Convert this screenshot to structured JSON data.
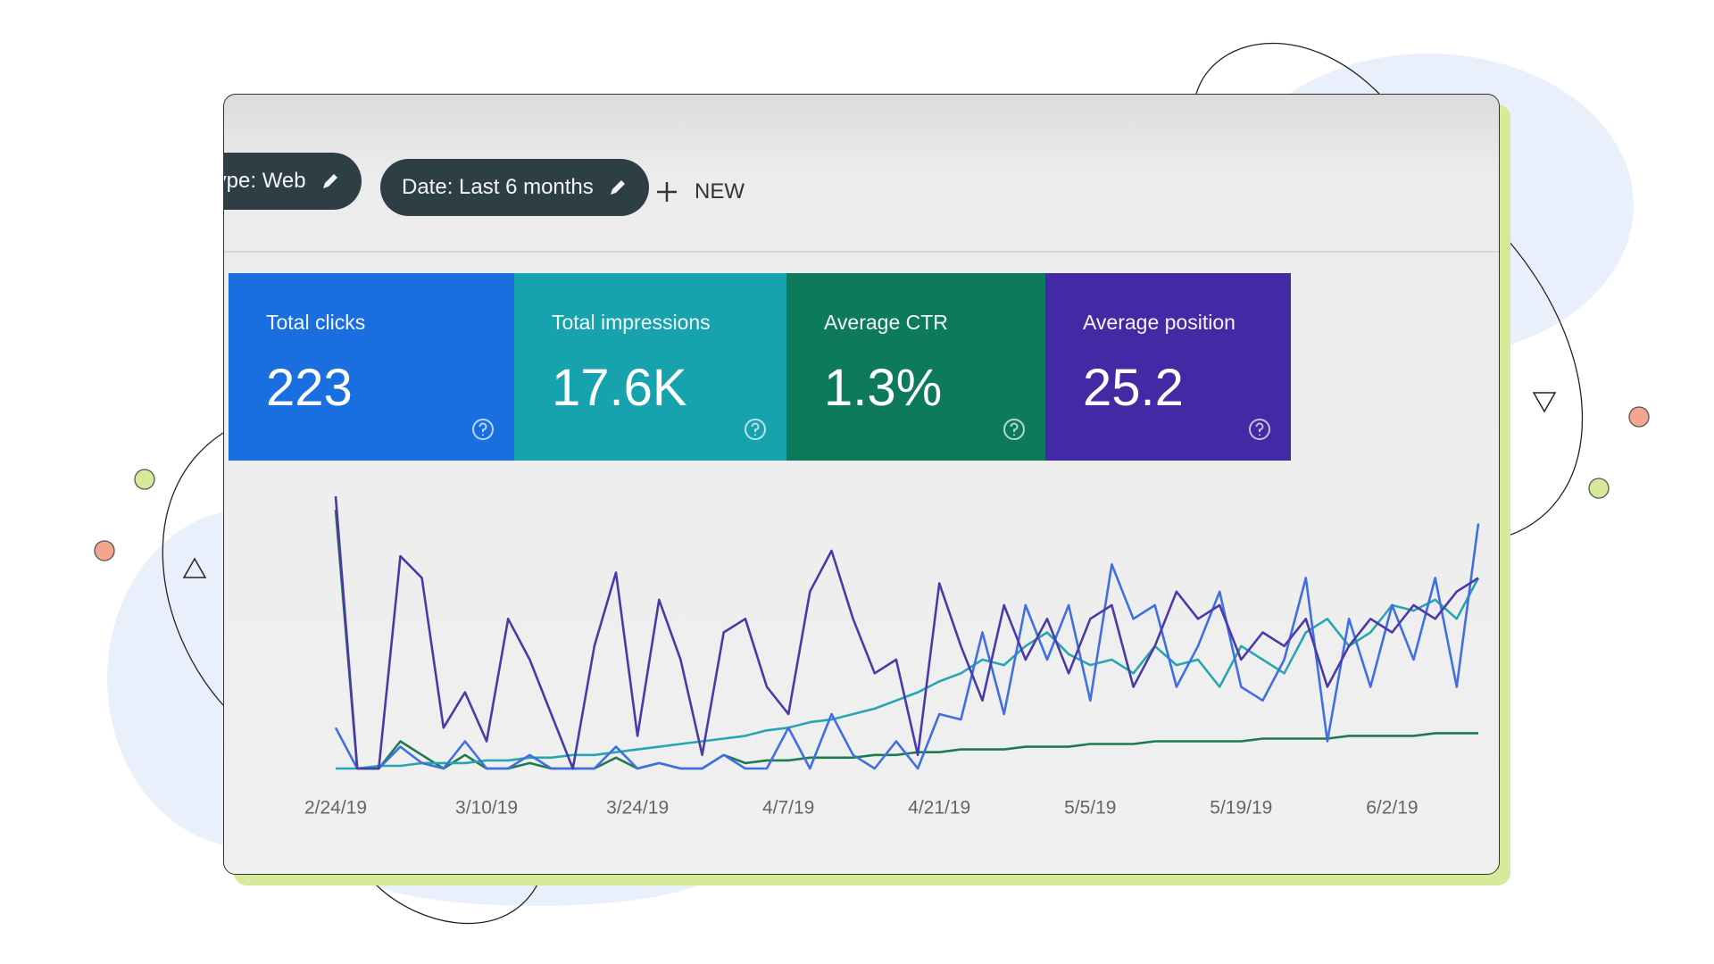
{
  "toolbar": {
    "chips": [
      "type: Web",
      "Date: Last 6 months"
    ],
    "new_button": "NEW"
  },
  "metrics": [
    {
      "title": "Total clicks",
      "value": "223",
      "color": "#1a6fe0"
    },
    {
      "title": "Total impressions",
      "value": "17.6K",
      "color": "#16a3ad"
    },
    {
      "title": "Average CTR",
      "value": "1.3%",
      "color": "#0e7a5c"
    },
    {
      "title": "Average position",
      "value": "25.2",
      "color": "#4329a4"
    }
  ],
  "chart_data": {
    "type": "line",
    "categories": [
      "2/24/19",
      null,
      null,
      null,
      null,
      null,
      null,
      "3/10/19",
      null,
      null,
      null,
      null,
      null,
      null,
      "3/24/19",
      null,
      null,
      null,
      null,
      null,
      null,
      "4/7/19",
      null,
      null,
      null,
      null,
      null,
      null,
      "4/21/19",
      null,
      null,
      null,
      null,
      null,
      null,
      "5/5/19",
      null,
      null,
      null,
      null,
      null,
      null,
      "5/19/19",
      null,
      null,
      null,
      null,
      null,
      null,
      "6/2/19",
      null,
      null,
      null,
      null
    ],
    "ylim": [
      0,
      100
    ],
    "series": [
      {
        "color": "#4a3aa8",
        "values": [
          100,
          0,
          0,
          78,
          70,
          15,
          28,
          10,
          55,
          40,
          20,
          0,
          45,
          72,
          12,
          62,
          40,
          5,
          50,
          55,
          30,
          20,
          65,
          80,
          55,
          35,
          40,
          5,
          68,
          45,
          25,
          60,
          40,
          55,
          35,
          55,
          60,
          30,
          45,
          65,
          55,
          60,
          40,
          50,
          45,
          55,
          30,
          45,
          55,
          50,
          60,
          55,
          65,
          70
        ]
      },
      {
        "color": "#3f6fe0",
        "values": [
          15,
          0,
          0,
          8,
          2,
          0,
          10,
          0,
          0,
          5,
          0,
          0,
          0,
          8,
          0,
          2,
          0,
          0,
          5,
          0,
          0,
          15,
          0,
          20,
          5,
          0,
          10,
          0,
          20,
          18,
          50,
          20,
          60,
          40,
          60,
          25,
          75,
          55,
          60,
          30,
          45,
          65,
          30,
          25,
          40,
          70,
          10,
          55,
          30,
          60,
          40,
          70,
          30,
          90
        ]
      },
      {
        "color": "#26a6b0",
        "values": [
          0,
          0,
          1,
          1,
          2,
          2,
          2,
          3,
          3,
          4,
          4,
          5,
          5,
          6,
          7,
          8,
          9,
          10,
          11,
          12,
          14,
          15,
          17,
          18,
          20,
          22,
          25,
          28,
          32,
          35,
          40,
          38,
          45,
          50,
          42,
          38,
          40,
          35,
          45,
          38,
          40,
          30,
          45,
          40,
          35,
          50,
          55,
          45,
          50,
          60,
          58,
          62,
          55,
          70
        ]
      },
      {
        "color": "#1f7a4e",
        "values": [
          95,
          0,
          0,
          10,
          5,
          0,
          5,
          0,
          0,
          2,
          0,
          0,
          0,
          4,
          0,
          2,
          0,
          0,
          5,
          2,
          3,
          3,
          4,
          4,
          4,
          5,
          5,
          6,
          6,
          7,
          7,
          7,
          8,
          8,
          8,
          9,
          9,
          9,
          10,
          10,
          10,
          10,
          10,
          11,
          11,
          11,
          11,
          12,
          12,
          12,
          12,
          13,
          13,
          13
        ]
      }
    ]
  }
}
